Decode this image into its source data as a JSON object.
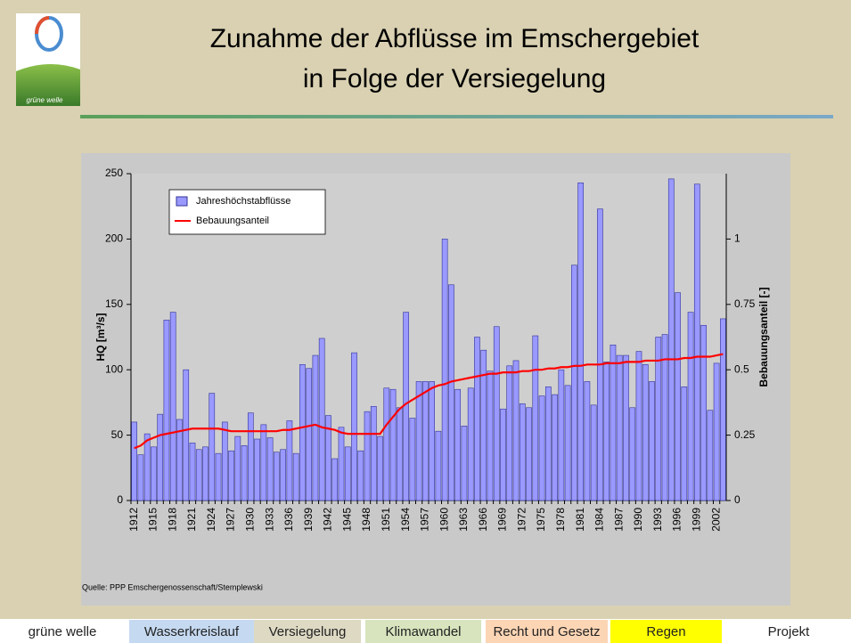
{
  "slide": {
    "title": [
      "Zunahme der Abflüsse im Emschergebiet",
      "in Folge der Versiegelung"
    ],
    "logo_text": "grüne welle",
    "source": "Quelle: PPP Emschergenossenschaft/Stemplewski",
    "nav": [
      "grüne welle",
      "Wasserkreislauf",
      "Versiegelung",
      "Klimawandel",
      "Recht und Gesetz",
      "Regen",
      "Projekt"
    ]
  },
  "chart_data": {
    "type": "bar",
    "ylabel": "HQ [m³/s]",
    "y2label": "Bebauungsanteil [-]",
    "categories": [
      "1912",
      null,
      null,
      "1915",
      null,
      null,
      "1918",
      null,
      null,
      "1921",
      null,
      null,
      "1924",
      null,
      null,
      "1927",
      null,
      null,
      "1930",
      null,
      null,
      "1933",
      null,
      null,
      "1936",
      null,
      null,
      "1939",
      null,
      null,
      "1942",
      null,
      null,
      "1945",
      null,
      null,
      "1948",
      null,
      null,
      "1951",
      null,
      null,
      "1954",
      null,
      null,
      "1957",
      null,
      null,
      "1960",
      null,
      null,
      "1963",
      null,
      null,
      "1966",
      null,
      null,
      "1969",
      null,
      null,
      "1972",
      null,
      null,
      "1975",
      null,
      null,
      "1978",
      null,
      null,
      "1981",
      null,
      null,
      "1984",
      null,
      null,
      "1987",
      null,
      null,
      "1990",
      null,
      null,
      "1993",
      null,
      null,
      "1996",
      null,
      null,
      "1999",
      null,
      null,
      "2002",
      null
    ],
    "series": [
      {
        "name": "Jahreshöchstabflüsse",
        "type": "bar",
        "color": "#9999ff",
        "values": [
          60,
          35,
          51,
          41,
          66,
          138,
          144,
          62,
          100,
          44,
          39,
          41,
          82,
          36,
          60,
          38,
          49,
          42,
          67,
          47,
          58,
          48,
          37,
          39,
          61,
          36,
          104,
          101,
          111,
          124,
          65,
          32,
          56,
          41,
          113,
          38,
          68,
          72,
          49,
          86,
          85,
          71,
          144,
          63,
          91,
          91,
          91,
          53,
          200,
          165,
          85,
          57,
          86,
          125,
          115,
          99,
          133,
          70,
          103,
          107,
          74,
          71,
          126,
          80,
          87,
          81,
          100,
          88,
          180,
          243,
          91,
          73,
          223,
          106,
          119,
          111,
          111,
          71,
          114,
          104,
          91,
          125,
          127,
          246,
          159,
          87,
          144,
          242,
          134,
          69,
          105,
          139
        ]
      },
      {
        "name": "Bebauungsanteil",
        "type": "line",
        "color": "#ff0000",
        "axis": "y2",
        "values": [
          0.2,
          0.21,
          0.23,
          0.24,
          0.25,
          0.255,
          0.26,
          0.265,
          0.27,
          0.275,
          0.275,
          0.275,
          0.275,
          0.275,
          0.27,
          0.265,
          0.265,
          0.265,
          0.265,
          0.265,
          0.265,
          0.265,
          0.265,
          0.27,
          0.27,
          0.275,
          0.28,
          0.285,
          0.29,
          0.28,
          0.275,
          0.27,
          0.26,
          0.255,
          0.255,
          0.255,
          0.255,
          0.255,
          0.255,
          0.29,
          0.32,
          0.35,
          0.37,
          0.385,
          0.4,
          0.415,
          0.43,
          0.44,
          0.445,
          0.455,
          0.46,
          0.465,
          0.47,
          0.475,
          0.48,
          0.485,
          0.485,
          0.49,
          0.49,
          0.49,
          0.495,
          0.495,
          0.5,
          0.5,
          0.505,
          0.505,
          0.51,
          0.51,
          0.515,
          0.515,
          0.52,
          0.52,
          0.52,
          0.525,
          0.525,
          0.525,
          0.53,
          0.53,
          0.53,
          0.535,
          0.535,
          0.535,
          0.54,
          0.54,
          0.54,
          0.545,
          0.545,
          0.55,
          0.55,
          0.55,
          0.555,
          0.56
        ]
      }
    ],
    "ylim": [
      0,
      250
    ],
    "yticks": [
      0,
      50,
      100,
      150,
      200,
      250
    ],
    "y2lim": [
      0,
      1.25
    ],
    "y2ticks": [
      0,
      0.25,
      0.5,
      0.75,
      1
    ],
    "legend": "upper left"
  }
}
